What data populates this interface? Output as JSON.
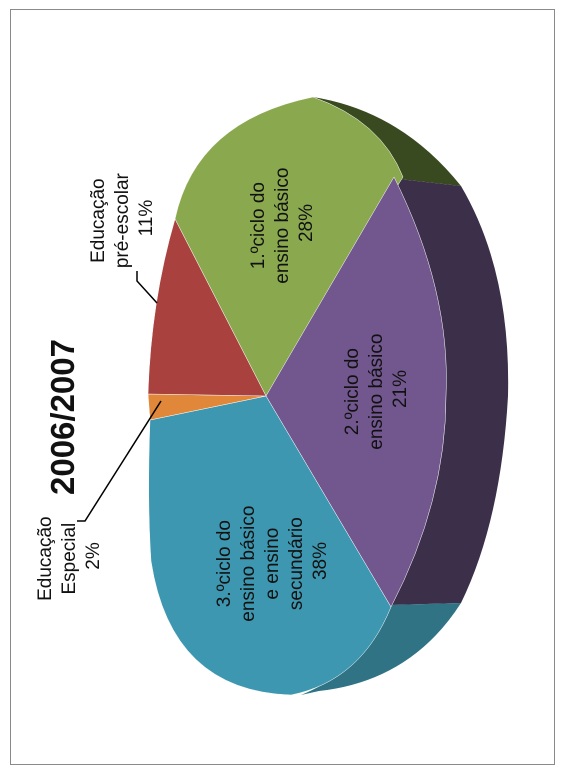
{
  "chart_data": {
    "type": "pie",
    "title": "2006/2007",
    "three_d": true,
    "legend": "none",
    "slices": [
      {
        "name": "1.ºciclo do ensino básico",
        "lines": [
          "1.ºciclo do",
          "ensino básico",
          "28%"
        ],
        "value": 28,
        "color": "#8aa94f",
        "side_color": "#3a4a20"
      },
      {
        "name": "2.ºciclo do ensino básico",
        "lines": [
          "2.ºciclo do",
          "ensino básico",
          "21%"
        ],
        "value": 21,
        "color": "#72578f",
        "side_color": "#3b2f4a"
      },
      {
        "name": "3.ºciclo do ensino básico e ensino secundário",
        "lines": [
          "3.ºciclo do",
          "ensino básico",
          "e ensino",
          "secundário",
          "38%"
        ],
        "value": 38,
        "color": "#3e97b0",
        "side_color": "#2f7385"
      },
      {
        "name": "Educação Especial",
        "lines": [
          "Educação",
          "Especial",
          "2%"
        ],
        "value": 2,
        "color": "#e0873a",
        "side_color": "#9a5a24"
      },
      {
        "name": "Educação pré-escolar",
        "lines": [
          "Educação",
          "pré-escolar",
          "11%"
        ],
        "value": 11,
        "color": "#a9423f",
        "side_color": "#6e2a28"
      }
    ]
  }
}
